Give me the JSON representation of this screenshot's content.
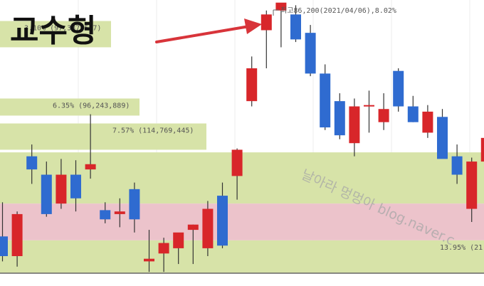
{
  "title": "교수형",
  "watermark": "날아라 멍멍아 blog.naver.c",
  "colors": {
    "up": "#d8262a",
    "down": "#2f6bd0",
    "band_green": "#d7e3a8",
    "band_pink": "#ecc3cb",
    "arrow": "#d8343a",
    "label_text": "#555555"
  },
  "chart_data": {
    "type": "candlestick",
    "y_axis": {
      "range": [
        66.0,
        86.8
      ],
      "scale": "linear"
    },
    "annotation_high": "최고86,200(2021/04/06),8.02%",
    "bands": [
      {
        "type": "green",
        "from": 83.2,
        "to": 85.2,
        "label": "3.10% (97,337,537)"
      },
      {
        "type": "green",
        "from": 78.0,
        "to": 79.3,
        "label": "6.35% (96,243,889)"
      },
      {
        "type": "green",
        "from": 75.4,
        "to": 77.4,
        "label": "7.57% (114,769,445)"
      },
      {
        "type": "green",
        "from": 71.3,
        "to": 75.2,
        "label": ""
      },
      {
        "type": "pink",
        "from": 68.5,
        "to": 71.3,
        "label": ""
      },
      {
        "type": "green",
        "from": 66.0,
        "to": 68.5,
        "label": "13.95% (21"
      }
    ],
    "candles": [
      {
        "o": 68.8,
        "h": 71.4,
        "l": 66.9,
        "c": 67.3
      },
      {
        "o": 67.3,
        "h": 70.7,
        "l": 66.5,
        "c": 70.5
      },
      {
        "o": 74.9,
        "h": 75.8,
        "l": 72.8,
        "c": 73.9
      },
      {
        "o": 73.5,
        "h": 74.5,
        "l": 70.3,
        "c": 70.5
      },
      {
        "o": 71.3,
        "h": 74.7,
        "l": 70.9,
        "c": 73.5
      },
      {
        "o": 73.5,
        "h": 74.6,
        "l": 70.7,
        "c": 71.7
      },
      {
        "o": 73.9,
        "h": 78.1,
        "l": 73.2,
        "c": 74.3
      },
      {
        "o": 70.8,
        "h": 71.4,
        "l": 69.8,
        "c": 70.1
      },
      {
        "o": 70.5,
        "h": 71.7,
        "l": 69.5,
        "c": 70.7
      },
      {
        "o": 72.4,
        "h": 72.9,
        "l": 69.1,
        "c": 70.1
      },
      {
        "o": 66.9,
        "h": 69.3,
        "l": 66.1,
        "c": 67.1
      },
      {
        "o": 67.5,
        "h": 68.7,
        "l": 66.1,
        "c": 68.3
      },
      {
        "o": 67.9,
        "h": 68.9,
        "l": 66.7,
        "c": 69.1
      },
      {
        "o": 69.3,
        "h": 69.7,
        "l": 66.7,
        "c": 69.7
      },
      {
        "o": 67.9,
        "h": 71.5,
        "l": 67.3,
        "c": 70.9
      },
      {
        "o": 71.9,
        "h": 72.9,
        "l": 67.9,
        "c": 68.1
      },
      {
        "o": 73.4,
        "h": 75.5,
        "l": 71.6,
        "c": 75.4
      },
      {
        "o": 79.1,
        "h": 82.5,
        "l": 78.7,
        "c": 81.6
      },
      {
        "o": 84.5,
        "h": 86.0,
        "l": 81.6,
        "c": 85.7
      },
      {
        "o": 86.0,
        "h": 86.5,
        "l": 83.2,
        "c": 86.6
      },
      {
        "o": 85.7,
        "h": 86.4,
        "l": 83.6,
        "c": 83.8
      },
      {
        "o": 84.3,
        "h": 84.9,
        "l": 81.0,
        "c": 81.2
      },
      {
        "o": 81.2,
        "h": 81.9,
        "l": 76.9,
        "c": 77.1
      },
      {
        "o": 79.1,
        "h": 79.7,
        "l": 76.2,
        "c": 76.5
      },
      {
        "o": 75.9,
        "h": 79.3,
        "l": 74.9,
        "c": 78.7
      },
      {
        "o": 78.7,
        "h": 79.9,
        "l": 76.7,
        "c": 78.8
      },
      {
        "o": 77.5,
        "h": 79.7,
        "l": 76.9,
        "c": 78.5
      },
      {
        "o": 81.4,
        "h": 81.6,
        "l": 78.3,
        "c": 78.7
      },
      {
        "o": 78.7,
        "h": 79.5,
        "l": 77.5,
        "c": 77.5
      },
      {
        "o": 76.7,
        "h": 78.8,
        "l": 76.3,
        "c": 78.3
      },
      {
        "o": 77.9,
        "h": 78.5,
        "l": 74.8,
        "c": 74.7
      },
      {
        "o": 74.9,
        "h": 75.8,
        "l": 72.8,
        "c": 73.5
      },
      {
        "o": 70.9,
        "h": 74.8,
        "l": 69.9,
        "c": 74.5
      },
      {
        "o": 74.5,
        "h": 77.9,
        "l": 73.9,
        "c": 76.3
      }
    ]
  }
}
